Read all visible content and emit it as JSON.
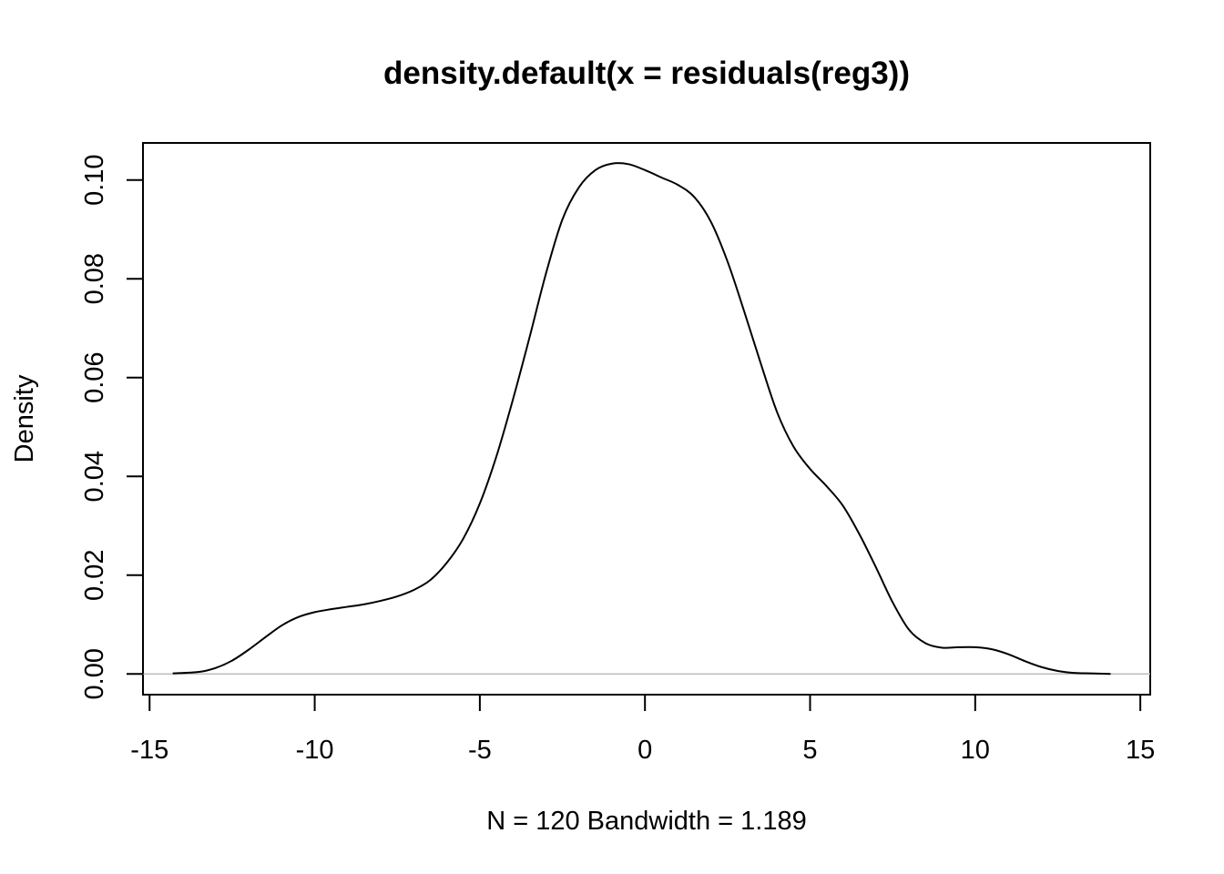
{
  "chart_data": {
    "type": "line",
    "title": "density.default(x = residuals(reg3))",
    "xlabel": "N = 120   Bandwidth = 1.189",
    "ylabel": "Density",
    "xlim": [
      -15.2,
      15.3
    ],
    "ylim": [
      -0.0042,
      0.1075
    ],
    "x_ticks": [
      -15,
      -10,
      -5,
      0,
      5,
      10,
      15
    ],
    "x_tick_labels": [
      "-15",
      "-10",
      "-5",
      "0",
      "5",
      "10",
      "15"
    ],
    "y_ticks": [
      0.0,
      0.02,
      0.04,
      0.06,
      0.08,
      0.1
    ],
    "y_tick_labels": [
      "0.00",
      "0.02",
      "0.04",
      "0.06",
      "0.08",
      "0.10"
    ],
    "grid": false,
    "legend": "none",
    "baseline": 0,
    "colors": {
      "line": "#000000",
      "baseline": "#bebebe"
    },
    "series": [
      {
        "x": [
          -14.3,
          -13.5,
          -13.0,
          -12.5,
          -12.0,
          -11.5,
          -11.0,
          -10.5,
          -10.0,
          -9.5,
          -9.0,
          -8.5,
          -8.0,
          -7.5,
          -7.0,
          -6.5,
          -6.0,
          -5.5,
          -5.0,
          -4.5,
          -4.0,
          -3.5,
          -3.0,
          -2.5,
          -2.0,
          -1.5,
          -1.0,
          -0.5,
          0.0,
          0.5,
          1.0,
          1.5,
          2.0,
          2.5,
          3.0,
          3.5,
          4.0,
          4.5,
          5.0,
          5.5,
          6.0,
          6.5,
          7.0,
          7.5,
          8.0,
          8.5,
          9.0,
          9.5,
          10.0,
          10.5,
          11.0,
          11.5,
          12.0,
          12.5,
          13.0,
          13.5,
          14.1
        ],
        "y": [
          0.0001,
          0.0004,
          0.0012,
          0.0027,
          0.0049,
          0.0074,
          0.0098,
          0.0115,
          0.0125,
          0.0131,
          0.0136,
          0.0141,
          0.0148,
          0.0157,
          0.017,
          0.019,
          0.0225,
          0.0274,
          0.0345,
          0.044,
          0.0555,
          0.068,
          0.081,
          0.092,
          0.0985,
          0.102,
          0.1033,
          0.1032,
          0.102,
          0.1005,
          0.099,
          0.0965,
          0.0915,
          0.0835,
          0.0735,
          0.063,
          0.053,
          0.046,
          0.0415,
          0.038,
          0.034,
          0.0282,
          0.0215,
          0.0145,
          0.0089,
          0.0062,
          0.0053,
          0.0054,
          0.0054,
          0.005,
          0.004,
          0.0026,
          0.0014,
          0.0006,
          0.0002,
          0.0001,
          0.0
        ]
      }
    ]
  }
}
